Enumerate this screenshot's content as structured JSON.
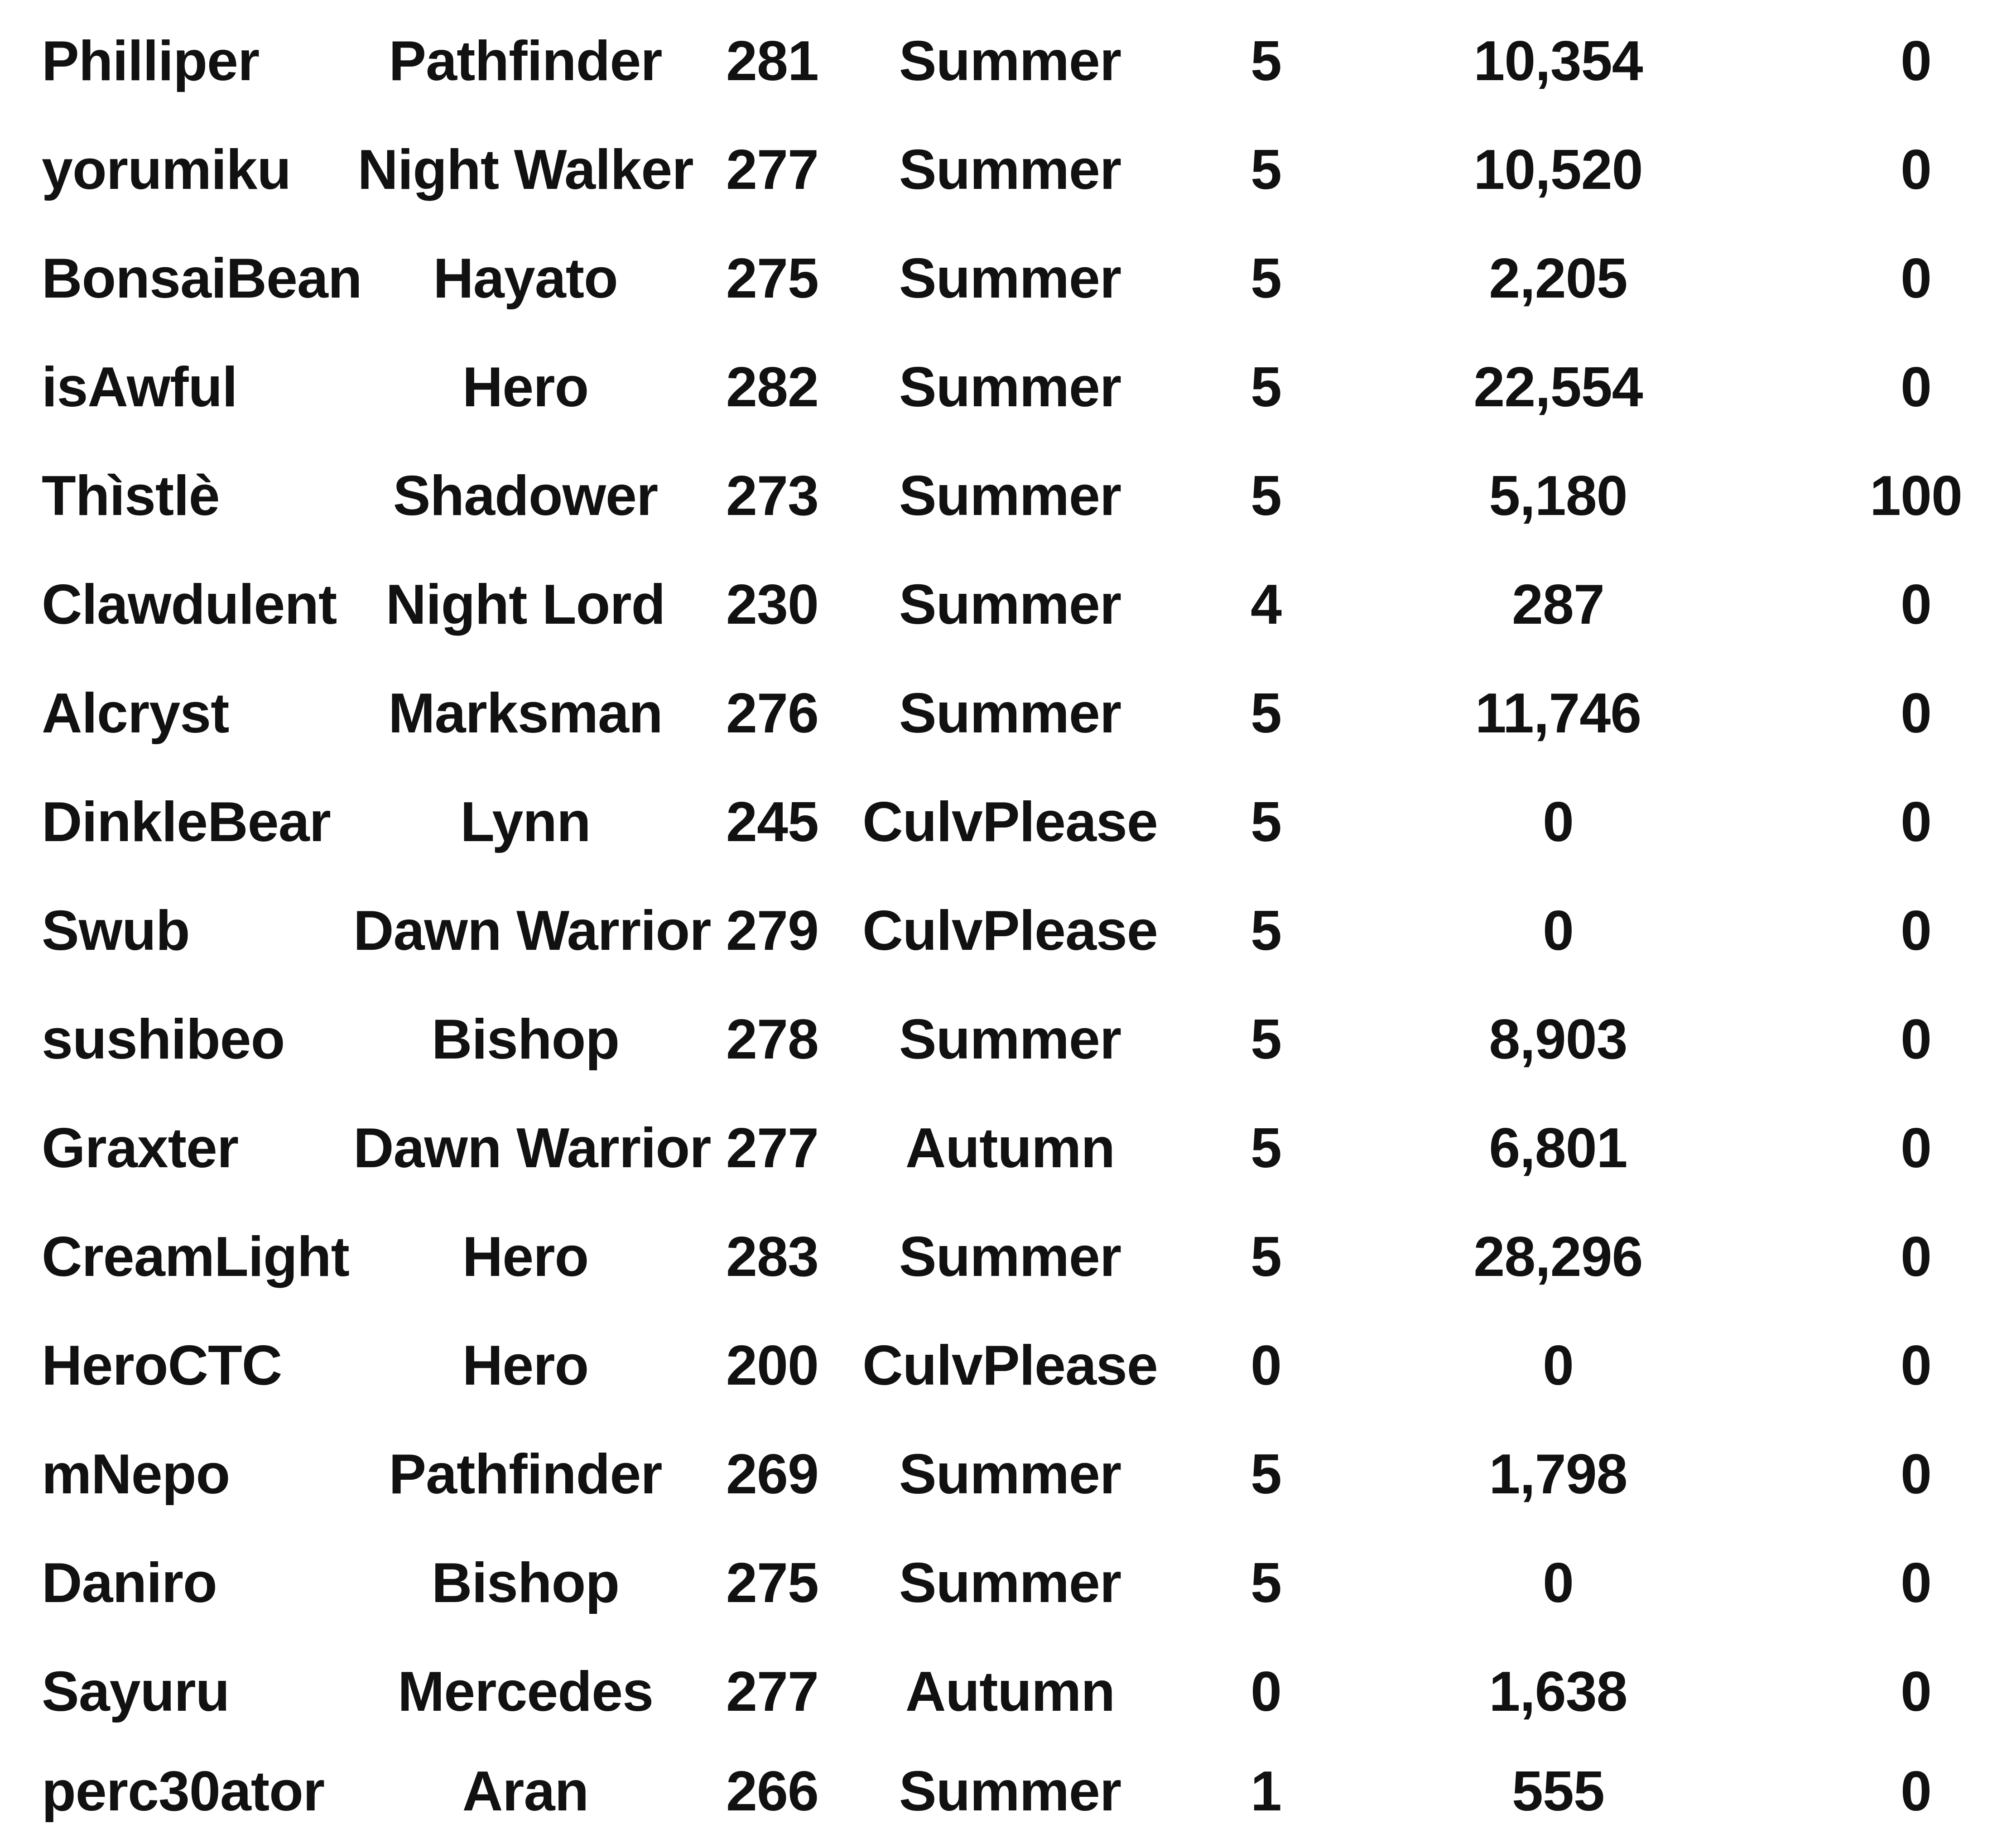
{
  "rows": [
    {
      "name": "Philliper",
      "job": "Pathfinder",
      "level": "281",
      "guild": "Summer",
      "stage": "5",
      "score": "10,354",
      "last": "0"
    },
    {
      "name": "yorumiku",
      "job": "Night Walker",
      "level": "277",
      "guild": "Summer",
      "stage": "5",
      "score": "10,520",
      "last": "0"
    },
    {
      "name": "BonsaiBean",
      "job": "Hayato",
      "level": "275",
      "guild": "Summer",
      "stage": "5",
      "score": "2,205",
      "last": "0"
    },
    {
      "name": "isAwful",
      "job": "Hero",
      "level": "282",
      "guild": "Summer",
      "stage": "5",
      "score": "22,554",
      "last": "0"
    },
    {
      "name": "Thìstlè",
      "job": "Shadower",
      "level": "273",
      "guild": "Summer",
      "stage": "5",
      "score": "5,180",
      "last": "100"
    },
    {
      "name": "Clawdulent",
      "job": "Night Lord",
      "level": "230",
      "guild": "Summer",
      "stage": "4",
      "score": "287",
      "last": "0"
    },
    {
      "name": "Alcryst",
      "job": "Marksman",
      "level": "276",
      "guild": "Summer",
      "stage": "5",
      "score": "11,746",
      "last": "0"
    },
    {
      "name": "DinkleBear",
      "job": "Lynn",
      "level": "245",
      "guild": "CulvPlease",
      "stage": "5",
      "score": "0",
      "last": "0"
    },
    {
      "name": "Swub",
      "job": "Dawn Warrior",
      "level": "279",
      "guild": "CulvPlease",
      "stage": "5",
      "score": "0",
      "last": "0"
    },
    {
      "name": "sushibeo",
      "job": "Bishop",
      "level": "278",
      "guild": "Summer",
      "stage": "5",
      "score": "8,903",
      "last": "0"
    },
    {
      "name": "Graxter",
      "job": "Dawn Warrior",
      "level": "277",
      "guild": "Autumn",
      "stage": "5",
      "score": "6,801",
      "last": "0"
    },
    {
      "name": "CreamLight",
      "job": "Hero",
      "level": "283",
      "guild": "Summer",
      "stage": "5",
      "score": "28,296",
      "last": "0"
    },
    {
      "name": "HeroCTC",
      "job": "Hero",
      "level": "200",
      "guild": "CulvPlease",
      "stage": "0",
      "score": "0",
      "last": "0"
    },
    {
      "name": "mNepo",
      "job": "Pathfinder",
      "level": "269",
      "guild": "Summer",
      "stage": "5",
      "score": "1,798",
      "last": "0"
    },
    {
      "name": "Daniro",
      "job": "Bishop",
      "level": "275",
      "guild": "Summer",
      "stage": "5",
      "score": "0",
      "last": "0"
    },
    {
      "name": "Sayuru",
      "job": "Mercedes",
      "level": "277",
      "guild": "Autumn",
      "stage": "0",
      "score": "1,638",
      "last": "0"
    },
    {
      "name": "perc30ator",
      "job": "Aran",
      "level": "266",
      "guild": "Summer",
      "stage": "1",
      "score": "555",
      "last": "0"
    }
  ]
}
